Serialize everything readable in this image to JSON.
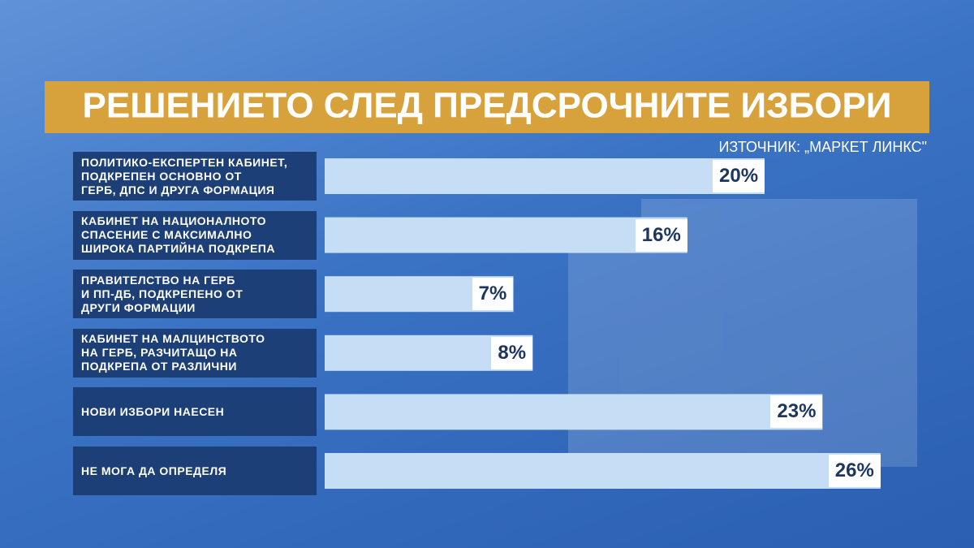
{
  "chart_data": {
    "type": "bar",
    "orientation": "horizontal",
    "title": "РЕШЕНИЕТО СЛЕД ПРЕДСРОЧНИТЕ ИЗБОРИ",
    "source": "ИЗТОЧНИК: „МАРКЕТ ЛИНКС\"",
    "categories": [
      "ПОЛИТИКО-ЕКСПЕРТЕН КАБИНЕТ,\nПОДКРЕПЕН ОСНОВНО ОТ\nГЕРБ, ДПС И ДРУГА ФОРМАЦИЯ",
      "КАБИНЕТ НА НАЦИОНАЛНОТО\nСПАСЕНИЕ С МАКСИМАЛНО\nШИРОКА ПАРТИЙНА ПОДКРЕПА",
      "ПРАВИТЕЛСТВО НА ГЕРБ\nИ ПП-ДБ, ПОДКРЕПЕНО ОТ\nДРУГИ ФОРМАЦИИ",
      "КАБИНЕТ НА МАЛЦИНСТВОТО\nНА ГЕРБ, РАЗЧИТАЩО НА\nПОДКРЕПА ОТ РАЗЛИЧНИ",
      "НОВИ ИЗБОРИ НАЕСЕН",
      "НЕ МОГА ДА ОПРЕДЕЛЯ"
    ],
    "values": [
      20,
      16,
      7,
      8,
      23,
      26
    ],
    "value_labels": [
      "20%",
      "16%",
      "7%",
      "8%",
      "23%",
      "26%"
    ],
    "color": "#c6ddf6"
  }
}
